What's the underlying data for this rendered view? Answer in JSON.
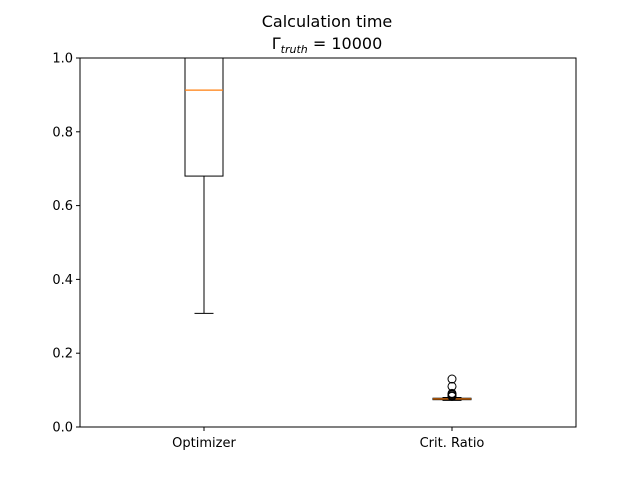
{
  "chart_data": {
    "type": "box",
    "title_line1": "Calculation time",
    "title_math": {
      "symbol": "Γ",
      "subscript": "truth",
      "rest": " = 10000"
    },
    "xlabel": "",
    "ylabel": "",
    "ylim": [
      0,
      1.0
    ],
    "yticks": [
      "0.0",
      "0.2",
      "0.4",
      "0.6",
      "0.8",
      "1.0"
    ],
    "categories": [
      "Optimizer",
      "Crit. Ratio"
    ],
    "boxes": [
      {
        "name": "Optimizer",
        "whisker_low": 0.308,
        "q1": 0.68,
        "median": 0.913,
        "q3": 1.0,
        "whisker_high": 1.0,
        "outliers": []
      },
      {
        "name": "Crit. Ratio",
        "whisker_low": 0.072,
        "q1": 0.074,
        "median": 0.076,
        "q3": 0.078,
        "whisker_high": 0.08,
        "outliers": [
          0.083,
          0.085,
          0.088,
          0.091,
          0.11,
          0.13
        ]
      }
    ],
    "colors": {
      "box": "#000000",
      "median": "#ff7f0e"
    },
    "grid": false
  }
}
